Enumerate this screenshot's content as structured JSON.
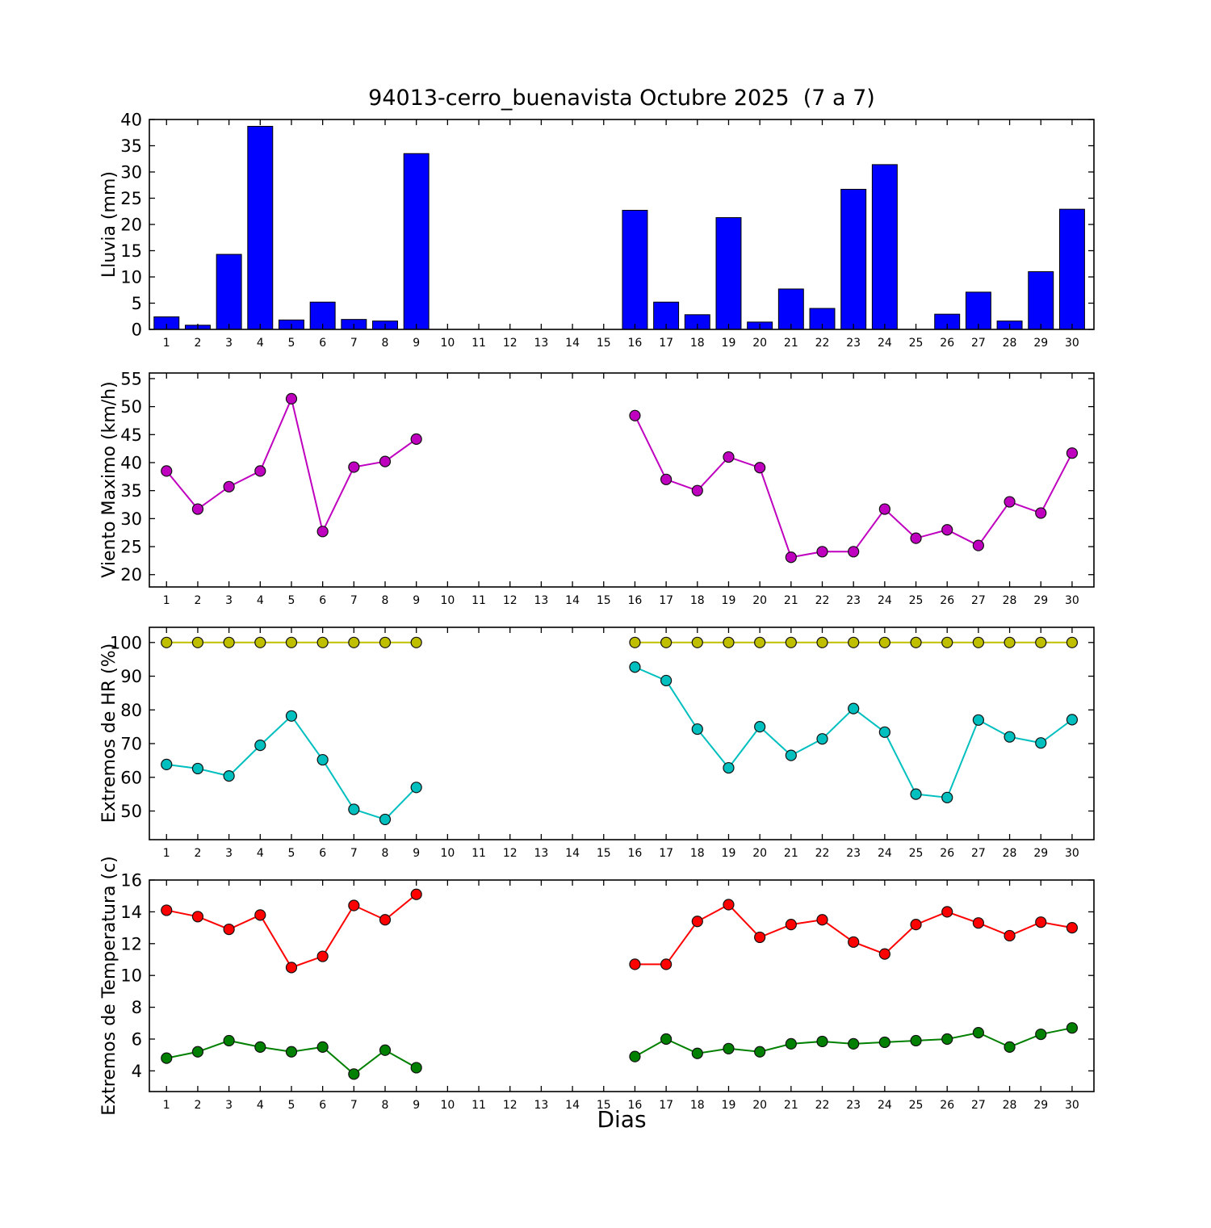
{
  "title": "94013-cerro_buenavista Octubre 2025  (7 a 7)",
  "xlabel": "Dias",
  "day_ticks": [
    1,
    2,
    3,
    4,
    5,
    6,
    7,
    8,
    9,
    10,
    11,
    12,
    13,
    14,
    15,
    16,
    17,
    18,
    19,
    20,
    21,
    22,
    23,
    24,
    25,
    26,
    27,
    28,
    29,
    30
  ],
  "chart_data": [
    {
      "type": "bar",
      "name": "lluvia",
      "ylabel": "Lluvia (mm)",
      "ylim": [
        0,
        40
      ],
      "yticks": [
        0,
        5,
        10,
        15,
        20,
        25,
        30,
        35,
        40
      ],
      "color": "#0000FF",
      "x": [
        1,
        2,
        3,
        4,
        5,
        6,
        7,
        8,
        9,
        16,
        17,
        18,
        19,
        20,
        21,
        22,
        23,
        24,
        25,
        26,
        27,
        28,
        29,
        30
      ],
      "values": [
        2.4,
        0.8,
        14.3,
        38.7,
        1.8,
        5.2,
        1.9,
        1.6,
        33.5,
        22.7,
        5.2,
        2.8,
        21.3,
        1.4,
        7.7,
        4.0,
        26.7,
        31.4,
        0.0,
        2.9,
        7.1,
        1.6,
        11.0,
        22.9
      ]
    },
    {
      "type": "line",
      "name": "viento-maximo",
      "ylabel": "Viento Maximo (km/h)",
      "ylim": [
        17.8,
        56
      ],
      "yticks": [
        20,
        25,
        30,
        35,
        40,
        45,
        50,
        55
      ],
      "series": [
        {
          "name": "viento-maximo",
          "color": "#BF00BF",
          "x": [
            1,
            2,
            3,
            4,
            5,
            6,
            7,
            8,
            9,
            16,
            17,
            18,
            19,
            20,
            21,
            22,
            23,
            24,
            25,
            26,
            27,
            28,
            29,
            30
          ],
          "values": [
            38.5,
            31.7,
            35.7,
            38.5,
            51.4,
            27.7,
            39.2,
            40.2,
            44.2,
            48.4,
            37.0,
            35.0,
            41.0,
            39.1,
            23.1,
            24.1,
            24.1,
            31.7,
            26.5,
            28.0,
            25.2,
            33.0,
            31.0,
            41.7
          ]
        }
      ]
    },
    {
      "type": "line",
      "name": "extremos-hr",
      "ylabel": "Extremos de HR (%)",
      "ylim": [
        41.5,
        104.5
      ],
      "yticks": [
        50,
        60,
        70,
        80,
        90,
        100
      ],
      "series": [
        {
          "name": "hr-max",
          "color": "#BFBF00",
          "x": [
            1,
            2,
            3,
            4,
            5,
            6,
            7,
            8,
            9,
            16,
            17,
            18,
            19,
            20,
            21,
            22,
            23,
            24,
            25,
            26,
            27,
            28,
            29,
            30
          ],
          "values": [
            100,
            100,
            100,
            100,
            100,
            100,
            100,
            100,
            100,
            100,
            100,
            100,
            100,
            100,
            100,
            100,
            100,
            100,
            100,
            100,
            100,
            100,
            100,
            100
          ]
        },
        {
          "name": "hr-min",
          "color": "#00BFBF",
          "x": [
            1,
            2,
            3,
            4,
            5,
            6,
            7,
            8,
            9,
            16,
            17,
            18,
            19,
            20,
            21,
            22,
            23,
            24,
            25,
            26,
            27,
            28,
            29,
            30
          ],
          "values": [
            63.8,
            62.6,
            60.4,
            69.5,
            78.2,
            65.2,
            50.5,
            47.5,
            57.0,
            92.7,
            88.7,
            74.3,
            62.8,
            75.0,
            66.5,
            71.4,
            80.4,
            73.4,
            55.0,
            54.0,
            77.0,
            72.0,
            70.2,
            77.1
          ]
        }
      ]
    },
    {
      "type": "line",
      "name": "extremos-temperatura",
      "ylabel": "Extremos de Temperatura (c)",
      "ylim": [
        2.7,
        16
      ],
      "yticks": [
        4,
        6,
        8,
        10,
        12,
        14,
        16
      ],
      "series": [
        {
          "name": "temp-max",
          "color": "#FF0000",
          "x": [
            1,
            2,
            3,
            4,
            5,
            6,
            7,
            8,
            9,
            16,
            17,
            18,
            19,
            20,
            21,
            22,
            23,
            24,
            25,
            26,
            27,
            28,
            29,
            30
          ],
          "values": [
            14.1,
            13.7,
            12.9,
            13.8,
            10.5,
            11.2,
            14.4,
            13.5,
            15.1,
            10.7,
            10.7,
            13.4,
            14.45,
            12.4,
            13.2,
            13.5,
            12.1,
            11.35,
            13.2,
            14.0,
            13.3,
            12.5,
            13.35,
            13.0
          ]
        },
        {
          "name": "temp-min",
          "color": "#008000",
          "x": [
            1,
            2,
            3,
            4,
            5,
            6,
            7,
            8,
            9,
            16,
            17,
            18,
            19,
            20,
            21,
            22,
            23,
            24,
            25,
            26,
            27,
            28,
            29,
            30
          ],
          "values": [
            4.8,
            5.2,
            5.9,
            5.5,
            5.2,
            5.5,
            3.8,
            5.3,
            4.2,
            4.9,
            6.0,
            5.1,
            5.4,
            5.2,
            5.7,
            5.85,
            5.7,
            5.8,
            5.9,
            6.0,
            6.4,
            5.5,
            6.3,
            6.7
          ]
        }
      ]
    }
  ]
}
